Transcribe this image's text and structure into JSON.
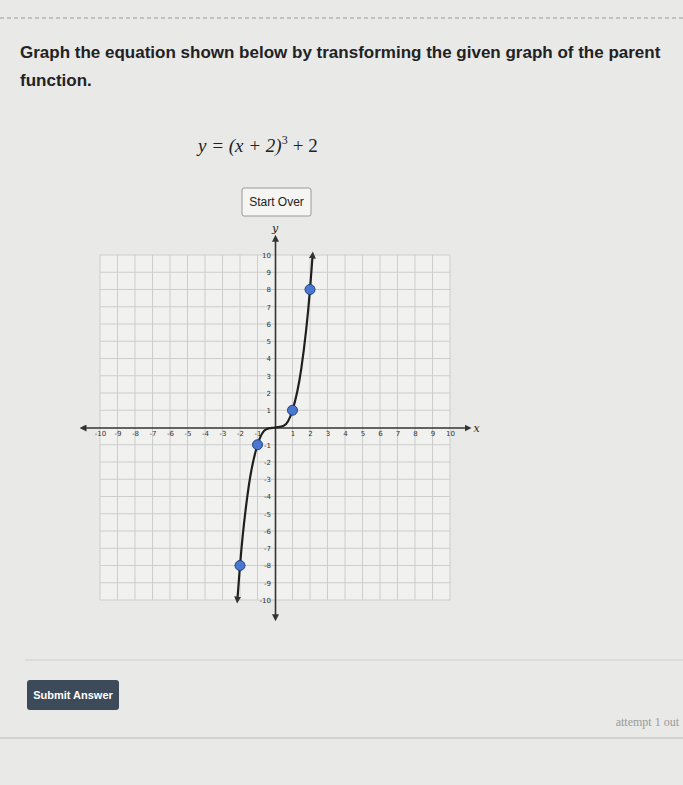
{
  "page": {
    "instruction": [
      "Graph the equation shown below by transforming the given graph of the parent",
      "function."
    ],
    "equation": {
      "base": "y = (x + 2)",
      "exponent": "3",
      "rest": "+ 2"
    },
    "start_button": "Start Over",
    "submit_button": "Submit Answer",
    "attempt": "attempt 1 out"
  },
  "chart_data": {
    "type": "line",
    "x_label": "x",
    "y_label": "y",
    "xlim": [
      -11,
      11
    ],
    "ylim": [
      -11,
      11
    ],
    "xticks": [
      -10,
      -9,
      -8,
      -7,
      -6,
      -5,
      -4,
      -3,
      -2,
      -1,
      1,
      2,
      3,
      4,
      5,
      6,
      7,
      8,
      9,
      10
    ],
    "yticks": [
      -10,
      -9,
      -8,
      -7,
      -6,
      -5,
      -4,
      -3,
      -2,
      -1,
      1,
      2,
      3,
      4,
      5,
      6,
      7,
      8,
      9,
      10
    ],
    "grid": true,
    "series": [
      {
        "type": "line",
        "color": "#1f1f1f",
        "line_style": "solid",
        "x": [
          -2.15,
          -2,
          -1.5,
          -1,
          -0.5,
          0,
          0.5,
          1,
          1.5,
          2,
          2.15
        ],
        "values": [
          -10,
          -8,
          -3.4,
          -1,
          -0.1,
          0,
          0.1,
          1,
          3.4,
          8,
          10
        ]
      },
      {
        "type": "scatter",
        "color": "#4a78d0",
        "marker": "circle",
        "x": [
          -2,
          -1,
          1,
          2
        ],
        "values": [
          -8,
          -1,
          1,
          8
        ]
      }
    ]
  }
}
